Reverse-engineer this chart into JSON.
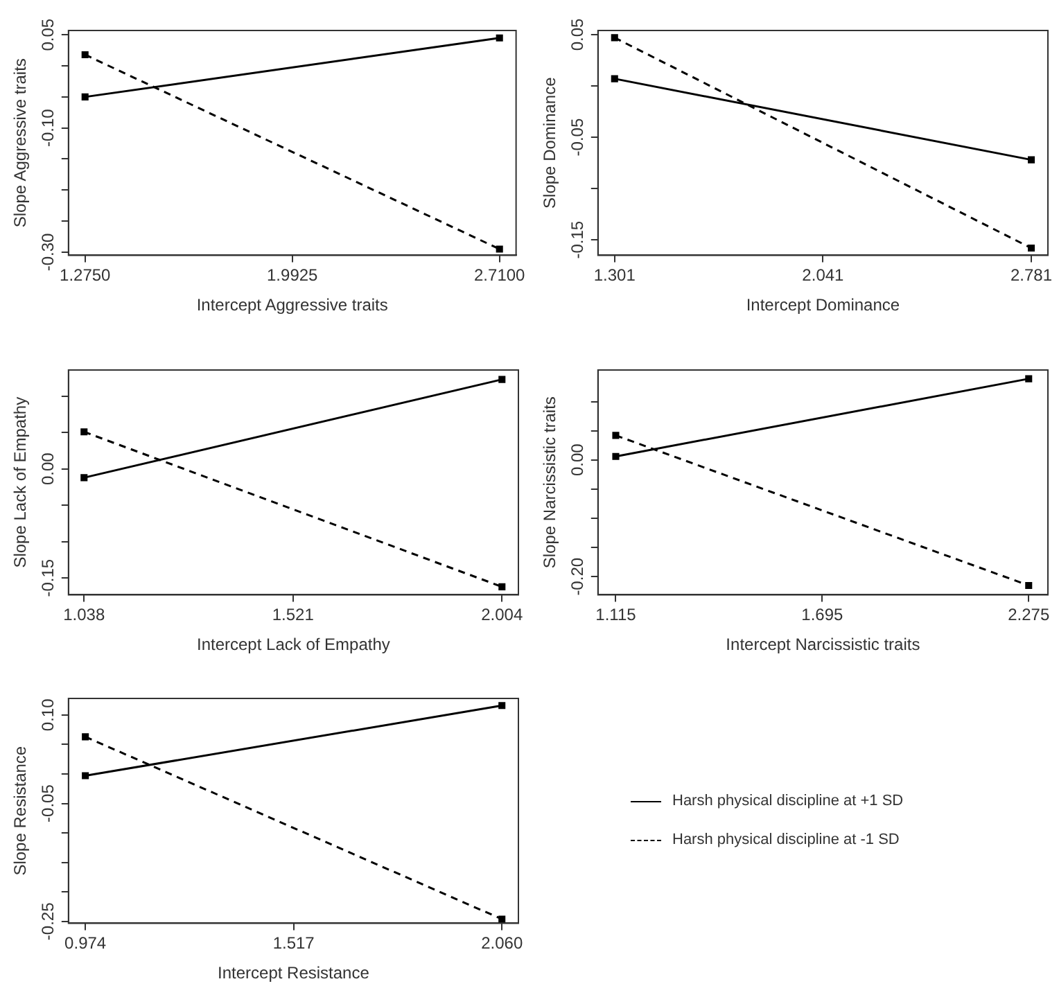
{
  "chart_data": [
    {
      "type": "line",
      "xlabel": "Intercept Aggressive traits",
      "ylabel": "Slope Aggressive traits",
      "x": [
        1.275,
        2.71
      ],
      "xlim": [
        1.2176,
        2.7674
      ],
      "xticks": [
        {
          "value": 1.275,
          "label": "1.2750"
        },
        1.9925,
        {
          "value": 2.71,
          "label": "2.7100"
        }
      ],
      "ylim": [
        -0.305,
        0.057
      ],
      "yticks": [
        0.05,
        {
          "value": 0,
          "label": null
        },
        {
          "value": -0.05,
          "label": null
        },
        {
          "value": -0.1,
          "label": "-0.10"
        },
        {
          "value": -0.15,
          "label": null
        },
        {
          "value": -0.2,
          "label": null
        },
        {
          "value": -0.25,
          "label": null
        },
        {
          "value": -0.3,
          "label": "-0.30"
        }
      ],
      "grid": false,
      "legend": false,
      "marker": "square",
      "series": [
        {
          "color": "#000000",
          "line_style": "solid",
          "values": [
            -0.05,
            0.045
          ]
        },
        {
          "color": "#000000",
          "line_style": "dashed",
          "values": [
            0.018,
            -0.295
          ]
        }
      ]
    },
    {
      "type": "line",
      "xlabel": "Intercept Dominance",
      "ylabel": "Slope Dominance",
      "x": [
        1.301,
        2.781
      ],
      "xlim": [
        1.242,
        2.84
      ],
      "xticks": [
        1.301,
        2.041,
        2.781
      ],
      "ylim": [
        -0.165,
        0.054
      ],
      "yticks": [
        0.05,
        {
          "value": 0,
          "label": null
        },
        -0.05,
        {
          "value": -0.1,
          "label": null
        },
        -0.15
      ],
      "grid": false,
      "legend": false,
      "marker": "square",
      "series": [
        {
          "color": "#000000",
          "line_style": "solid",
          "values": [
            0.007,
            -0.072
          ]
        },
        {
          "color": "#000000",
          "line_style": "dashed",
          "values": [
            0.047,
            -0.158
          ]
        }
      ]
    },
    {
      "type": "line",
      "xlabel": "Intercept Lack of Empathy",
      "ylabel": "Slope Lack of Empathy",
      "x": [
        1.038,
        2.004
      ],
      "xlim": [
        1.002,
        2.042
      ],
      "xticks": [
        1.038,
        1.521,
        2.004
      ],
      "ylim": [
        -0.173,
        0.136
      ],
      "yticks": [
        {
          "value": 0.1,
          "label": null
        },
        {
          "value": 0.05,
          "label": null
        },
        {
          "value": 0,
          "label": "0.00"
        },
        {
          "value": -0.05,
          "label": null
        },
        {
          "value": -0.1,
          "label": null
        },
        -0.15
      ],
      "grid": false,
      "legend": false,
      "marker": "square",
      "series": [
        {
          "color": "#000000",
          "line_style": "solid",
          "values": [
            -0.012,
            0.123
          ]
        },
        {
          "color": "#000000",
          "line_style": "dashed",
          "values": [
            0.051,
            -0.162
          ]
        }
      ]
    },
    {
      "type": "line",
      "xlabel": "Intercept Narcissistic traits",
      "ylabel": "Slope Narcissistic traits",
      "x": [
        1.115,
        2.275
      ],
      "xlim": [
        1.065,
        2.329
      ],
      "xticks": [
        1.115,
        1.695,
        2.275
      ],
      "ylim": [
        -0.231,
        0.154
      ],
      "yticks": [
        {
          "value": 0.1,
          "label": null
        },
        {
          "value": 0.05,
          "label": null
        },
        {
          "value": 0,
          "label": "0.00"
        },
        {
          "value": -0.05,
          "label": null
        },
        {
          "value": -0.1,
          "label": null
        },
        {
          "value": -0.15,
          "label": null
        },
        {
          "value": -0.2,
          "label": "-0.20"
        }
      ],
      "grid": false,
      "legend": false,
      "marker": "square",
      "series": [
        {
          "color": "#000000",
          "line_style": "solid",
          "values": [
            0.006,
            0.139
          ]
        },
        {
          "color": "#000000",
          "line_style": "dashed",
          "values": [
            0.042,
            -0.215
          ]
        }
      ]
    },
    {
      "type": "line",
      "xlabel": "Intercept Resistance",
      "ylabel": "Slope Resistance",
      "x": [
        0.974,
        2.06
      ],
      "xlim": [
        0.93,
        2.103
      ],
      "xticks": [
        0.974,
        1.517,
        {
          "value": 2.06,
          "label": "2.060"
        }
      ],
      "ylim": [
        -0.253,
        0.128
      ],
      "yticks": [
        {
          "value": 0.1,
          "label": "0.10"
        },
        {
          "value": 0.05,
          "label": null
        },
        {
          "value": 0,
          "label": null
        },
        -0.05,
        {
          "value": -0.1,
          "label": null
        },
        {
          "value": -0.15,
          "label": null
        },
        {
          "value": -0.2,
          "label": null
        },
        -0.25
      ],
      "grid": false,
      "legend": "right",
      "marker": "square",
      "series": [
        {
          "name": "Harsh physical discipline at +1 SD",
          "color": "#000000",
          "line_style": "solid",
          "values": [
            -0.003,
            0.116
          ]
        },
        {
          "name": "Harsh physical discipline at -1 SD",
          "color": "#000000",
          "line_style": "dashed",
          "values": [
            0.063,
            -0.246
          ]
        }
      ]
    }
  ]
}
